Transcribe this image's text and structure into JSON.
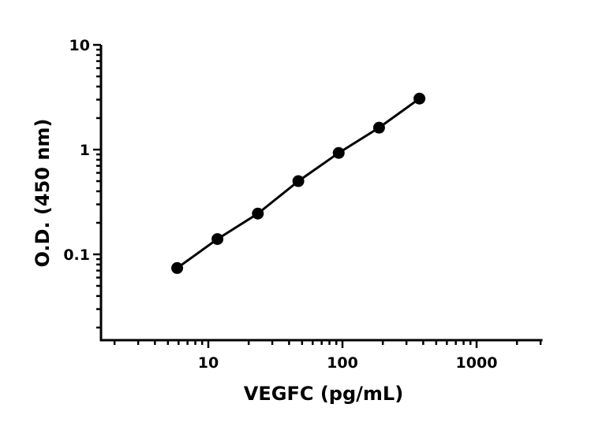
{
  "chart_data": {
    "type": "scatter",
    "title": "",
    "xlabel": "VEGFC (pg/mL)",
    "ylabel": "O.D. (450 nm)",
    "x_scale": "log",
    "y_scale": "log",
    "xlim": [
      1.6,
      3100
    ],
    "ylim": [
      0.016,
      10
    ],
    "x_ticks": [
      10,
      100,
      1000
    ],
    "x_tick_labels": [
      "10",
      "100",
      "1000"
    ],
    "y_ticks": [
      0.1,
      1,
      10
    ],
    "y_tick_labels": [
      "0.1",
      "1",
      "10"
    ],
    "grid": false,
    "legend": "none",
    "series": [
      {
        "x": [
          5.86,
          11.7,
          23.4,
          46.9,
          93.75,
          187.5,
          375
        ],
        "y": [
          0.074,
          0.14,
          0.245,
          0.5,
          0.93,
          1.62,
          3.07
        ],
        "marker": "circle",
        "line": true,
        "color": "#000000"
      }
    ]
  }
}
